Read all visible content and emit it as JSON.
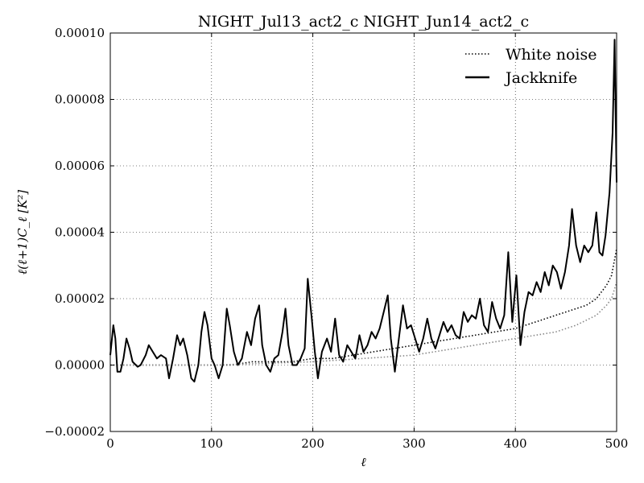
{
  "chart_data": {
    "type": "line",
    "title": "NIGHT_Jul13_act2_c NIGHT_Jun14_act2_c",
    "xlabel": "ℓ",
    "ylabel": "ℓ(ℓ+1)C_ℓ [K²]",
    "xlim": [
      0,
      500
    ],
    "ylim": [
      -2e-05,
      0.0001
    ],
    "x_ticks": [
      0,
      100,
      200,
      300,
      400,
      500
    ],
    "x_tick_labels": [
      "0",
      "100",
      "200",
      "300",
      "400",
      "500"
    ],
    "y_ticks": [
      -2e-05,
      0,
      2e-05,
      4e-05,
      6e-05,
      8e-05,
      0.0001
    ],
    "y_tick_labels": [
      "−0.00002",
      "0.00000",
      "0.00002",
      "0.00004",
      "0.00006",
      "0.00008",
      "0.00010"
    ],
    "grid": true,
    "legend_position": "top-right",
    "series": [
      {
        "name": "White noise",
        "style": "dotted",
        "color": "#000000",
        "points": [
          [
            0,
            0.0
          ],
          [
            20,
            0.0
          ],
          [
            40,
            0.0
          ],
          [
            60,
            0.0
          ],
          [
            80,
            0.0
          ],
          [
            100,
            0.0
          ],
          [
            120,
            0.0
          ],
          [
            140,
            1e-06
          ],
          [
            160,
            1e-06
          ],
          [
            180,
            1e-06
          ],
          [
            200,
            2e-06
          ],
          [
            220,
            2e-06
          ],
          [
            240,
            3e-06
          ],
          [
            260,
            4e-06
          ],
          [
            280,
            5e-06
          ],
          [
            300,
            6e-06
          ],
          [
            320,
            7e-06
          ],
          [
            340,
            8e-06
          ],
          [
            360,
            9e-06
          ],
          [
            380,
            1e-05
          ],
          [
            400,
            1.1e-05
          ],
          [
            420,
            1.3e-05
          ],
          [
            440,
            1.5e-05
          ],
          [
            460,
            1.7e-05
          ],
          [
            470,
            1.8e-05
          ],
          [
            480,
            2e-05
          ],
          [
            490,
            2.4e-05
          ],
          [
            495,
            2.7e-05
          ],
          [
            500,
            3.5e-05
          ]
        ]
      },
      {
        "name": "White noise",
        "style": "dotted",
        "color": "#888888",
        "points": [
          [
            0,
            0.0
          ],
          [
            100,
            0.0
          ],
          [
            200,
            1e-06
          ],
          [
            250,
            2e-06
          ],
          [
            300,
            3e-06
          ],
          [
            340,
            5e-06
          ],
          [
            360,
            6e-06
          ],
          [
            380,
            7e-06
          ],
          [
            400,
            8e-06
          ],
          [
            420,
            9e-06
          ],
          [
            440,
            1e-05
          ],
          [
            460,
            1.2e-05
          ],
          [
            480,
            1.5e-05
          ],
          [
            490,
            1.8e-05
          ],
          [
            495,
            2e-05
          ],
          [
            500,
            2.5e-05
          ]
        ]
      },
      {
        "name": "Jackknife",
        "style": "solid",
        "color": "#000000",
        "points": [
          [
            0,
            3e-06
          ],
          [
            3,
            1.2e-05
          ],
          [
            5,
            8e-06
          ],
          [
            7,
            -2e-06
          ],
          [
            10,
            -2e-06
          ],
          [
            13,
            2e-06
          ],
          [
            16,
            8e-06
          ],
          [
            19,
            5e-06
          ],
          [
            22,
            1e-06
          ],
          [
            27,
            -5e-07
          ],
          [
            30,
            0.0
          ],
          [
            35,
            3e-06
          ],
          [
            38,
            6e-06
          ],
          [
            42,
            4e-06
          ],
          [
            46,
            2e-06
          ],
          [
            50,
            3e-06
          ],
          [
            55,
            2e-06
          ],
          [
            58,
            -4e-06
          ],
          [
            62,
            2e-06
          ],
          [
            66,
            9e-06
          ],
          [
            69,
            6e-06
          ],
          [
            72,
            8e-06
          ],
          [
            76,
            3e-06
          ],
          [
            80,
            -4e-06
          ],
          [
            83,
            -5e-06
          ],
          [
            87,
            0.0
          ],
          [
            90,
            1e-05
          ],
          [
            93,
            1.6e-05
          ],
          [
            96,
            1.2e-05
          ],
          [
            100,
            2e-06
          ],
          [
            103,
            0.0
          ],
          [
            107,
            -4e-06
          ],
          [
            111,
            0.0
          ],
          [
            115,
            1.7e-05
          ],
          [
            118,
            1.2e-05
          ],
          [
            122,
            4e-06
          ],
          [
            126,
            0.0
          ],
          [
            130,
            2e-06
          ],
          [
            135,
            1e-05
          ],
          [
            139,
            6e-06
          ],
          [
            143,
            1.4e-05
          ],
          [
            147,
            1.8e-05
          ],
          [
            150,
            6e-06
          ],
          [
            154,
            0.0
          ],
          [
            158,
            -2e-06
          ],
          [
            162,
            2e-06
          ],
          [
            166,
            3e-06
          ],
          [
            170,
            1e-05
          ],
          [
            173,
            1.7e-05
          ],
          [
            176,
            6e-06
          ],
          [
            180,
            0.0
          ],
          [
            184,
            0.0
          ],
          [
            188,
            2e-06
          ],
          [
            192,
            5e-06
          ],
          [
            195,
            2.6e-05
          ],
          [
            199,
            1.4e-05
          ],
          [
            202,
            4e-06
          ],
          [
            205,
            -4e-06
          ],
          [
            209,
            4e-06
          ],
          [
            214,
            8e-06
          ],
          [
            218,
            4e-06
          ],
          [
            222,
            1.4e-05
          ],
          [
            226,
            3e-06
          ],
          [
            230,
            1e-06
          ],
          [
            234,
            6e-06
          ],
          [
            238,
            4e-06
          ],
          [
            242,
            2e-06
          ],
          [
            246,
            9e-06
          ],
          [
            250,
            4e-06
          ],
          [
            254,
            6e-06
          ],
          [
            258,
            1e-05
          ],
          [
            262,
            8e-06
          ],
          [
            266,
            1.1e-05
          ],
          [
            270,
            1.6e-05
          ],
          [
            274,
            2.1e-05
          ],
          [
            277,
            8e-06
          ],
          [
            281,
            -2e-06
          ],
          [
            285,
            8e-06
          ],
          [
            289,
            1.8e-05
          ],
          [
            293,
            1.1e-05
          ],
          [
            297,
            1.2e-05
          ],
          [
            301,
            8e-06
          ],
          [
            305,
            4e-06
          ],
          [
            309,
            8e-06
          ],
          [
            313,
            1.4e-05
          ],
          [
            317,
            8e-06
          ],
          [
            321,
            5e-06
          ],
          [
            325,
            9e-06
          ],
          [
            329,
            1.3e-05
          ],
          [
            333,
            1e-05
          ],
          [
            337,
            1.2e-05
          ],
          [
            341,
            9e-06
          ],
          [
            345,
            8e-06
          ],
          [
            349,
            1.6e-05
          ],
          [
            353,
            1.3e-05
          ],
          [
            357,
            1.5e-05
          ],
          [
            361,
            1.4e-05
          ],
          [
            365,
            2e-05
          ],
          [
            369,
            1.2e-05
          ],
          [
            373,
            1e-05
          ],
          [
            377,
            1.9e-05
          ],
          [
            381,
            1.4e-05
          ],
          [
            385,
            1.1e-05
          ],
          [
            389,
            1.5e-05
          ],
          [
            393,
            3.4e-05
          ],
          [
            397,
            1.3e-05
          ],
          [
            401,
            2.7e-05
          ],
          [
            405,
            6e-06
          ],
          [
            409,
            1.6e-05
          ],
          [
            413,
            2.2e-05
          ],
          [
            417,
            2.1e-05
          ],
          [
            421,
            2.5e-05
          ],
          [
            425,
            2.2e-05
          ],
          [
            429,
            2.8e-05
          ],
          [
            433,
            2.4e-05
          ],
          [
            437,
            3e-05
          ],
          [
            441,
            2.8e-05
          ],
          [
            445,
            2.3e-05
          ],
          [
            449,
            2.8e-05
          ],
          [
            453,
            3.6e-05
          ],
          [
            456,
            4.7e-05
          ],
          [
            460,
            3.6e-05
          ],
          [
            464,
            3.1e-05
          ],
          [
            468,
            3.6e-05
          ],
          [
            472,
            3.4e-05
          ],
          [
            476,
            3.6e-05
          ],
          [
            480,
            4.6e-05
          ],
          [
            483,
            3.4e-05
          ],
          [
            486,
            3.3e-05
          ],
          [
            489,
            3.9e-05
          ],
          [
            493,
            5.2e-05
          ],
          [
            496,
            7e-05
          ],
          [
            498,
            9.8e-05
          ],
          [
            500,
            5.5e-05
          ]
        ]
      }
    ],
    "legend": [
      {
        "label": "White noise",
        "style": "dotted"
      },
      {
        "label": "Jackknife",
        "style": "solid"
      }
    ]
  }
}
